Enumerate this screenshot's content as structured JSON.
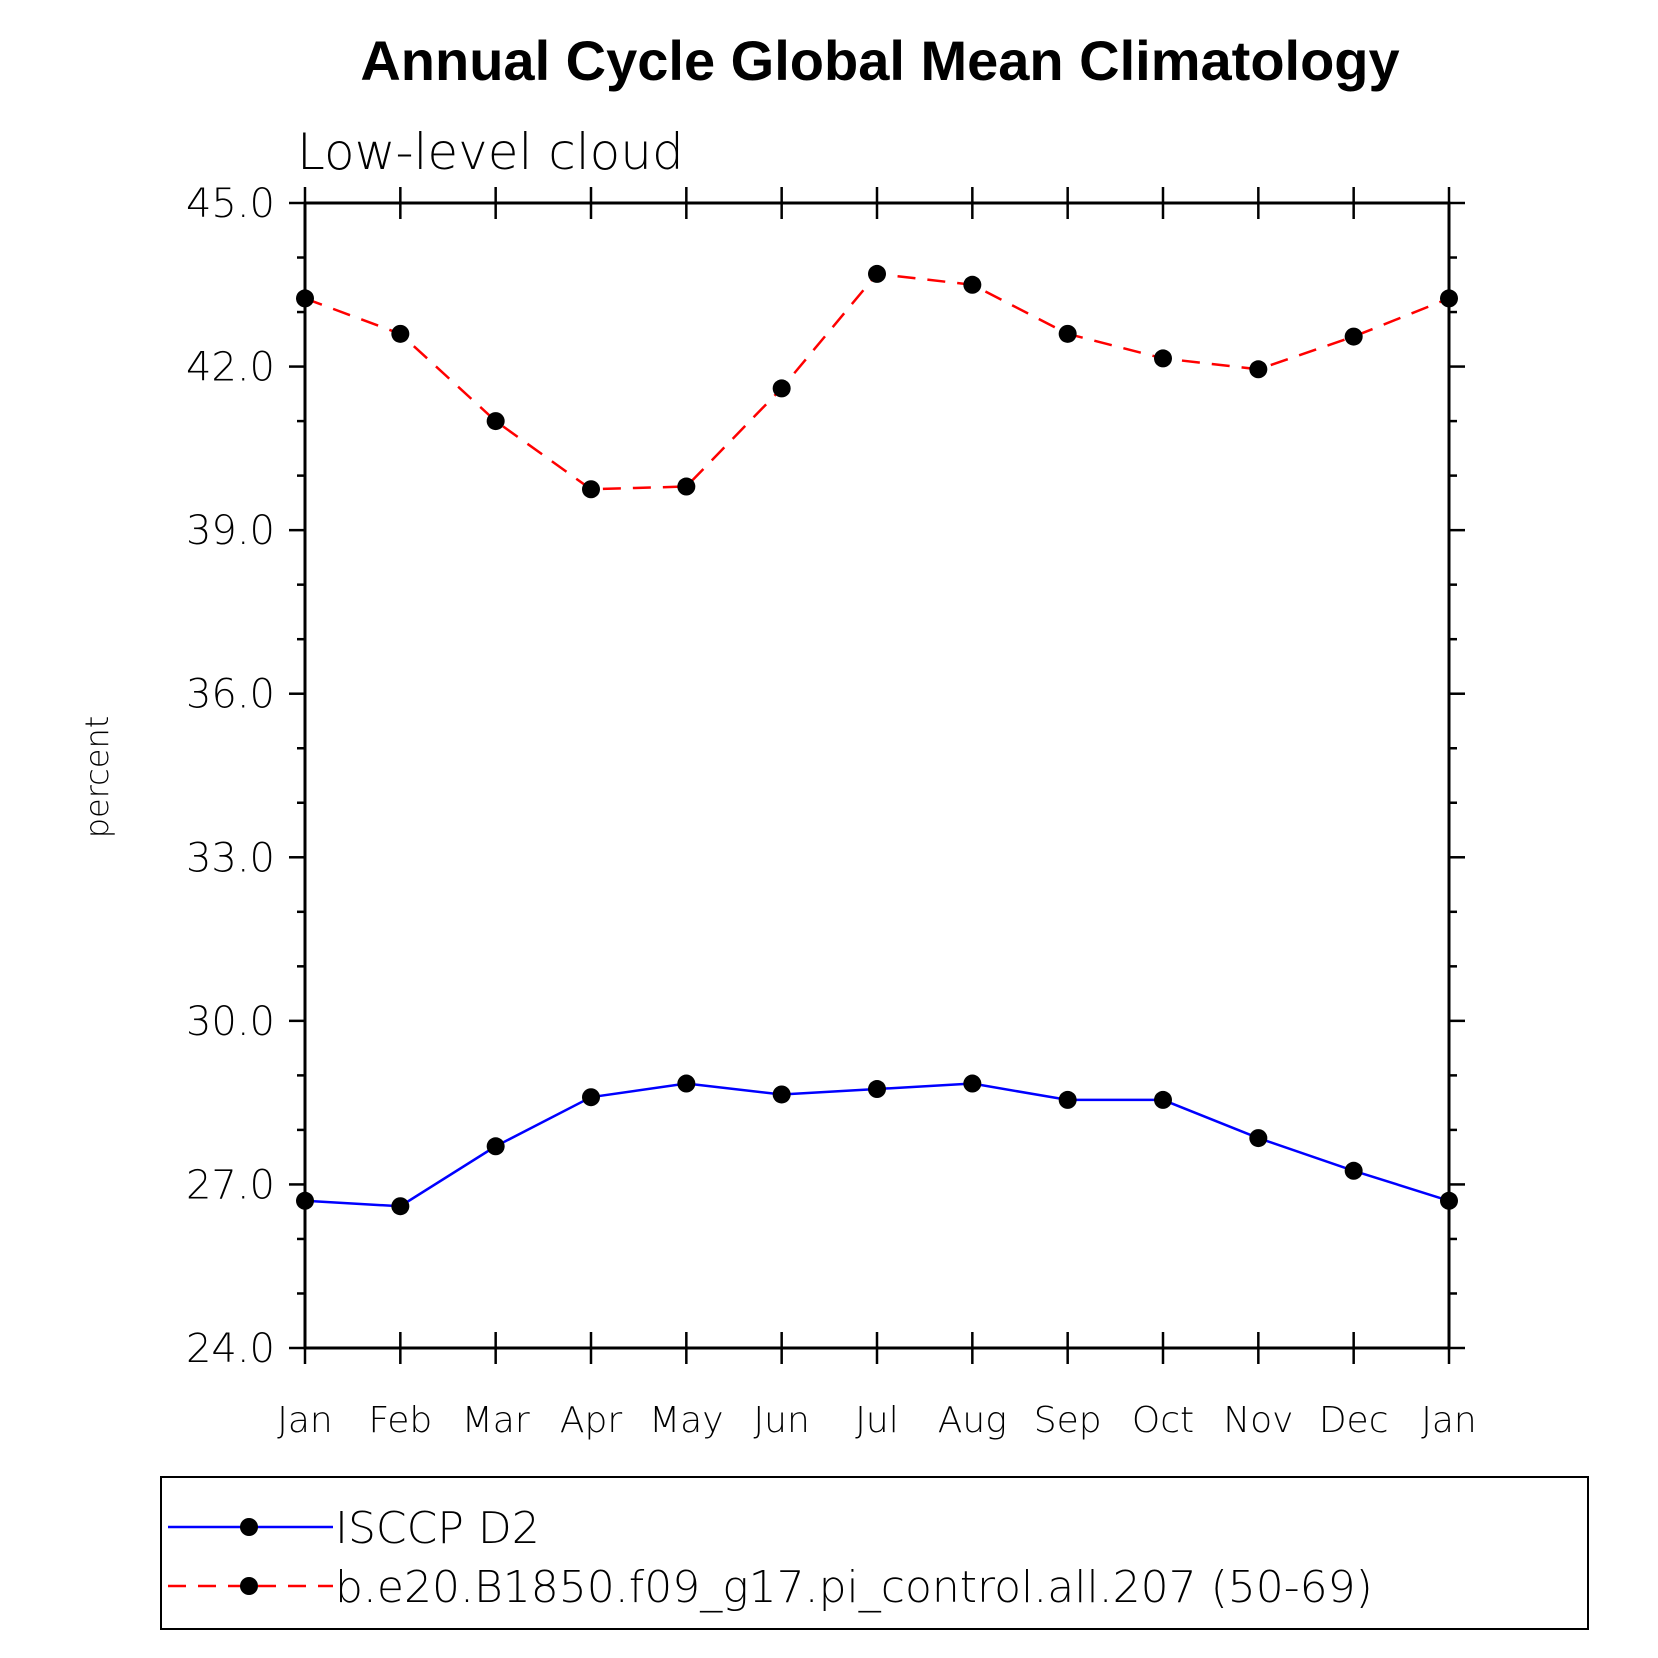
{
  "chart_data": {
    "type": "line",
    "title": "Annual Cycle Global Mean Climatology",
    "subtitle": "Low-level cloud",
    "xlabel": "",
    "ylabel": "percent",
    "categories": [
      "Jan",
      "Feb",
      "Mar",
      "Apr",
      "May",
      "Jun",
      "Jul",
      "Aug",
      "Sep",
      "Oct",
      "Nov",
      "Dec",
      "Jan"
    ],
    "ylim": [
      24.0,
      45.0
    ],
    "yticks": [
      "24.0",
      "27.0",
      "30.0",
      "33.0",
      "36.0",
      "39.0",
      "42.0",
      "45.0"
    ],
    "y_minor_step": 1.0,
    "grid": false,
    "legend_placement": "bottom",
    "series": [
      {
        "name": "ISCCP D2",
        "color": "#0000ff",
        "dash": "solid",
        "marker": "filled-circle",
        "values": [
          26.7,
          26.6,
          27.7,
          28.6,
          28.85,
          28.65,
          28.75,
          28.85,
          28.55,
          28.55,
          27.85,
          27.25,
          26.7
        ]
      },
      {
        "name": "b.e20.B1850.f09_g17.pi_control.all.207 (50-69)",
        "color": "#ff0000",
        "dash": "dashed",
        "marker": "filled-circle",
        "values": [
          43.25,
          42.6,
          41.0,
          39.75,
          39.8,
          41.6,
          43.7,
          43.5,
          42.6,
          42.15,
          41.95,
          42.55,
          43.25
        ]
      }
    ]
  }
}
